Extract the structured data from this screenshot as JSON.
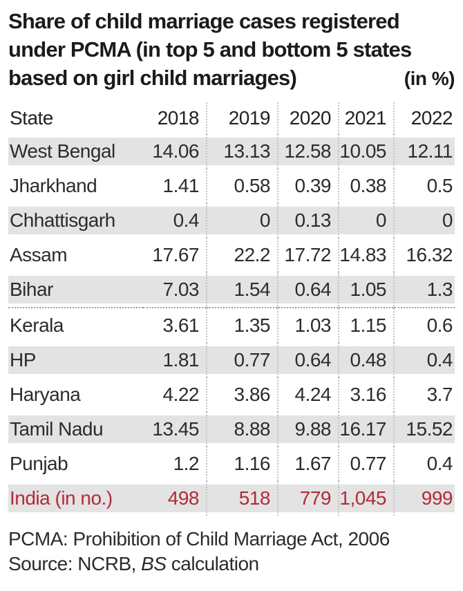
{
  "title": {
    "line1": "Share of child marriage cases registered",
    "line2": "under PCMA (in top 5 and bottom 5 states",
    "line3": "based on girl child marriages)",
    "unit": "(in %)"
  },
  "table": {
    "state_header": "State",
    "years": [
      "2018",
      "2019",
      "2020",
      "2021",
      "2022"
    ],
    "rows": [
      {
        "state": "West Bengal",
        "values": [
          "14.06",
          "13.13",
          "12.58",
          "10.05",
          "12.11"
        ]
      },
      {
        "state": "Jharkhand",
        "values": [
          "1.41",
          "0.58",
          "0.39",
          "0.38",
          "0.5"
        ]
      },
      {
        "state": "Chhattisgarh",
        "values": [
          "0.4",
          "0",
          "0.13",
          "0",
          "0"
        ]
      },
      {
        "state": "Assam",
        "values": [
          "17.67",
          "22.2",
          "17.72",
          "14.83",
          "16.32"
        ]
      },
      {
        "state": "Bihar",
        "values": [
          "7.03",
          "1.54",
          "0.64",
          "1.05",
          "1.3"
        ]
      },
      {
        "state": "Kerala",
        "values": [
          "3.61",
          "1.35",
          "1.03",
          "1.15",
          "0.6"
        ]
      },
      {
        "state": "HP",
        "values": [
          "1.81",
          "0.77",
          "0.64",
          "0.48",
          "0.4"
        ]
      },
      {
        "state": "Haryana",
        "values": [
          "4.22",
          "3.86",
          "4.24",
          "3.16",
          "3.7"
        ]
      },
      {
        "state": "Tamil Nadu",
        "values": [
          "13.45",
          "8.88",
          "9.88",
          "16.17",
          "15.52"
        ]
      },
      {
        "state": "Punjab",
        "values": [
          "1.2",
          "1.16",
          "1.67",
          "0.77",
          "0.4"
        ]
      },
      {
        "state": "India (in no.)",
        "values": [
          "498",
          "518",
          "779",
          "1,045",
          "999"
        ]
      }
    ]
  },
  "footer": {
    "note": "PCMA: Prohibition of Child Marriage Act, 2006",
    "source_prefix": "Source: NCRB, ",
    "source_italic": "BS",
    "source_suffix": " calculation"
  },
  "colors": {
    "row_shade": "#e3e3e3",
    "highlight_text": "#b12b38",
    "title_text": "#1b1b1b",
    "body_text": "#2c2c2c",
    "divider_dots": "#9c9c9c",
    "separator_dots": "#c3c3c3"
  },
  "chart_data": {
    "type": "table",
    "title": "Share of child marriage cases registered under PCMA (in top 5 and bottom 5 states based on girl child marriages)",
    "unit": "(in %)",
    "categories": [
      "2018",
      "2019",
      "2020",
      "2021",
      "2022"
    ],
    "series": [
      {
        "name": "West Bengal",
        "values": [
          14.06,
          13.13,
          12.58,
          10.05,
          12.11
        ]
      },
      {
        "name": "Jharkhand",
        "values": [
          1.41,
          0.58,
          0.39,
          0.38,
          0.5
        ]
      },
      {
        "name": "Chhattisgarh",
        "values": [
          0.4,
          0,
          0.13,
          0,
          0
        ]
      },
      {
        "name": "Assam",
        "values": [
          17.67,
          22.2,
          17.72,
          14.83,
          16.32
        ]
      },
      {
        "name": "Bihar",
        "values": [
          7.03,
          1.54,
          0.64,
          1.05,
          1.3
        ]
      },
      {
        "name": "Kerala",
        "values": [
          3.61,
          1.35,
          1.03,
          1.15,
          0.6
        ]
      },
      {
        "name": "HP",
        "values": [
          1.81,
          0.77,
          0.64,
          0.48,
          0.4
        ]
      },
      {
        "name": "Haryana",
        "values": [
          4.22,
          3.86,
          4.24,
          3.16,
          3.7
        ]
      },
      {
        "name": "Tamil Nadu",
        "values": [
          13.45,
          8.88,
          9.88,
          16.17,
          15.52
        ]
      },
      {
        "name": "Punjab",
        "values": [
          1.2,
          1.16,
          1.67,
          0.77,
          0.4
        ]
      },
      {
        "name": "India (in no.)",
        "values": [
          498,
          518,
          779,
          1045,
          999
        ]
      }
    ],
    "groups": {
      "top5_rows": [
        0,
        1,
        2,
        3,
        4
      ],
      "bottom5_rows": [
        5,
        6,
        7,
        8,
        9
      ],
      "summary_row": 10
    },
    "notes": [
      "PCMA: Prohibition of Child Marriage Act, 2006",
      "Source: NCRB, BS calculation"
    ]
  }
}
